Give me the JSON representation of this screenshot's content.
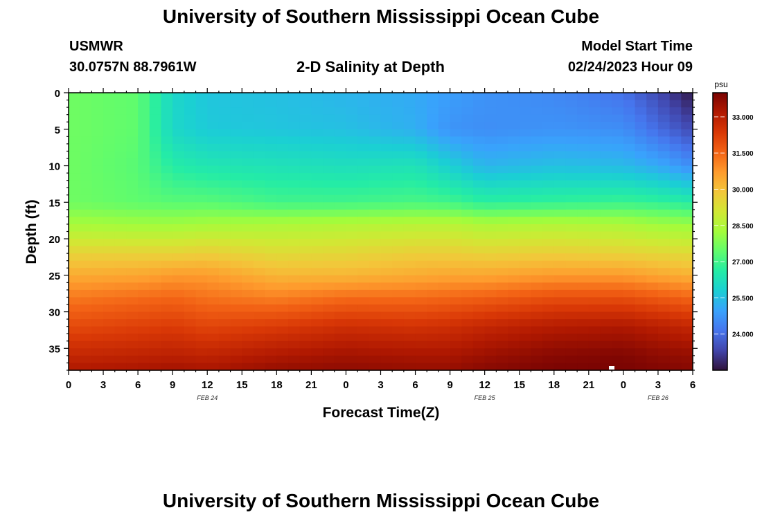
{
  "header": {
    "title": "University of Southern Mississippi Ocean Cube",
    "station": "USMWR",
    "location": "30.0757N  88.7961W",
    "subtitle": "2-D Salinity at Depth",
    "model_start_label": "Model Start Time",
    "model_start_value": "02/24/2023 Hour 09"
  },
  "footer": {
    "title": "University of Southern Mississippi Ocean Cube"
  },
  "chart_data": {
    "type": "heatmap",
    "title": "2-D Salinity at Depth",
    "xlabel": "Forecast Time(Z)",
    "ylabel": "Depth (ft)",
    "x_hours": [
      0,
      54
    ],
    "x_tick_labels": [
      "0",
      "3",
      "6",
      "9",
      "12",
      "15",
      "18",
      "21",
      "0",
      "3",
      "6",
      "9",
      "12",
      "15",
      "18",
      "21",
      "0",
      "3",
      "6"
    ],
    "date_labels": [
      {
        "text": "FEB 24",
        "at_hour": 12
      },
      {
        "text": "FEB 25",
        "at_hour": 36
      },
      {
        "text": "FEB 26",
        "at_hour": 51
      }
    ],
    "y_range": [
      0,
      38
    ],
    "y_ticks": [
      "0",
      "5",
      "10",
      "15",
      "20",
      "25",
      "30",
      "35"
    ],
    "colorbar": {
      "unit": "psu",
      "range": [
        22.5,
        34.0
      ],
      "tick_labels": [
        "33.000",
        "31.500",
        "30.000",
        "28.500",
        "27.000",
        "25.500",
        "24.000"
      ],
      "colors": [
        "#30123b",
        "#4145ab",
        "#4675ed",
        "#39a2fc",
        "#1bcfd4",
        "#24eca6",
        "#61fc6c",
        "#a4fc3b",
        "#d1e834",
        "#f3c63a",
        "#fe9b2d",
        "#f36315",
        "#d93806",
        "#b11901",
        "#7a0402"
      ]
    },
    "profiles_psu": {
      "hours": [
        0,
        6,
        9,
        12,
        18,
        24,
        30,
        33,
        36,
        42,
        48,
        51,
        54
      ],
      "depths_ft": [
        0,
        5,
        10,
        15,
        18,
        22,
        25,
        28,
        32,
        36,
        38
      ],
      "values": [
        [
          27.6,
          27.6,
          27.6,
          27.6,
          28.3,
          29.6,
          30.4,
          31.2,
          32.0,
          32.8,
          33.2
        ],
        [
          27.4,
          27.4,
          27.3,
          27.4,
          28.2,
          29.6,
          30.5,
          31.4,
          32.2,
          32.9,
          33.3
        ],
        [
          26.0,
          26.0,
          26.6,
          27.3,
          28.2,
          29.6,
          30.7,
          31.5,
          32.3,
          33.0,
          33.4
        ],
        [
          25.6,
          25.7,
          26.4,
          27.3,
          28.3,
          29.7,
          30.7,
          31.3,
          32.1,
          32.9,
          33.3
        ],
        [
          25.5,
          25.6,
          26.3,
          27.0,
          28.4,
          29.4,
          30.2,
          31.1,
          32.3,
          33.2,
          33.6
        ],
        [
          25.3,
          25.5,
          26.2,
          27.0,
          28.5,
          29.5,
          30.2,
          31.4,
          32.6,
          33.4,
          33.7
        ],
        [
          25.1,
          25.2,
          26.3,
          27.1,
          28.6,
          29.7,
          30.4,
          31.4,
          32.5,
          33.3,
          33.6
        ],
        [
          24.9,
          24.7,
          25.8,
          27.0,
          28.6,
          29.7,
          30.5,
          31.5,
          32.6,
          33.3,
          33.6
        ],
        [
          24.7,
          24.6,
          25.3,
          26.7,
          28.4,
          29.6,
          30.5,
          31.6,
          32.8,
          33.5,
          33.8
        ],
        [
          24.5,
          24.7,
          25.5,
          26.8,
          28.5,
          29.7,
          30.7,
          31.9,
          33.1,
          33.8,
          34.0
        ],
        [
          24.1,
          24.6,
          25.4,
          26.9,
          28.4,
          29.6,
          30.7,
          31.9,
          33.2,
          33.9,
          34.0
        ],
        [
          23.4,
          24.0,
          25.1,
          26.8,
          28.2,
          29.5,
          30.5,
          31.7,
          33.0,
          33.7,
          33.9
        ],
        [
          22.6,
          23.4,
          24.6,
          26.6,
          28.1,
          29.4,
          30.3,
          31.5,
          32.8,
          33.6,
          33.8
        ]
      ]
    }
  }
}
